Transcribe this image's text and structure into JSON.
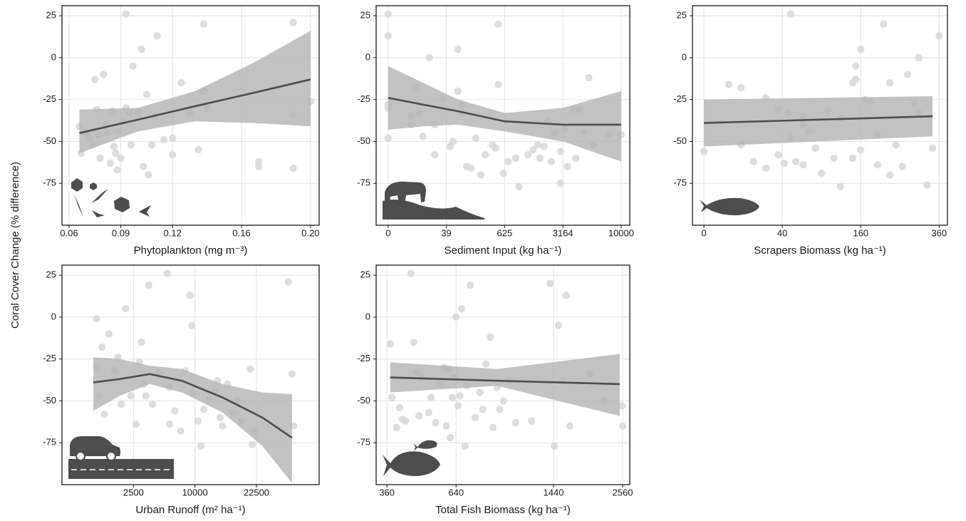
{
  "ylabel": "Coral Cover Change (% difference)",
  "chart_data": [
    {
      "type": "scatter",
      "xlabel": "Phytoplankton (mg m⁻³)",
      "xscale": "linear",
      "xlim": [
        0.0559,
        0.205
      ],
      "xticks": [
        {
          "value": 0.06,
          "label": "0.06"
        },
        {
          "value": 0.09,
          "label": "0.09"
        },
        {
          "value": 0.12,
          "label": "0.12"
        },
        {
          "value": 0.16,
          "label": "0.16"
        },
        {
          "value": 0.2,
          "label": "0.20"
        }
      ],
      "ylim": [
        -100,
        31
      ],
      "yticks": [
        25,
        0,
        -25,
        -50,
        -75
      ],
      "grid": true,
      "point_color": "#d9d9d9",
      "line_color": "#4d4d4d",
      "band_color": "#b3b3b3",
      "x": [
        0.093,
        0.066,
        0.067,
        0.07,
        0.072,
        0.074,
        0.075,
        0.076,
        0.077,
        0.078,
        0.08,
        0.081,
        0.082,
        0.084,
        0.085,
        0.086,
        0.087,
        0.088,
        0.089,
        0.09,
        0.091,
        0.093,
        0.095,
        0.096,
        0.097,
        0.1,
        0.102,
        0.103,
        0.105,
        0.106,
        0.108,
        0.11,
        0.111,
        0.115,
        0.12,
        0.12,
        0.125,
        0.13,
        0.135,
        0.138,
        0.138,
        0.14,
        0.17,
        0.17,
        0.19,
        0.19,
        0.19,
        0.2
      ],
      "values": [
        26,
        -41,
        -57,
        -45,
        -48,
        -52,
        -13,
        -31,
        -46,
        -60,
        -10,
        -40,
        -45,
        -63,
        -32,
        -53,
        -57,
        -67,
        -44,
        -60,
        -38,
        -30,
        -33,
        -52,
        -5,
        -32,
        5,
        -65,
        -22,
        -70,
        -52,
        -35,
        13,
        -49,
        -58,
        -48,
        -15,
        -33,
        -55,
        20,
        -20,
        -30,
        -62,
        -65,
        21,
        -34,
        -66,
        -26
      ],
      "fit_x": [
        0.066,
        0.1,
        0.133,
        0.167,
        0.2
      ],
      "fit_values": [
        -45,
        -37,
        -29,
        -21,
        -13
      ],
      "band_lower": [
        -57,
        -44,
        -38,
        -39,
        -41
      ],
      "band_upper": [
        -31,
        -30,
        -20,
        -3,
        16
      ]
    },
    {
      "type": "scatter",
      "xlabel": "Sediment Input (kg ha⁻¹)",
      "xscale": "root4",
      "xlim": [
        -0.07,
        11560
      ],
      "xticks": [
        0,
        39,
        625,
        3164,
        10000
      ],
      "ylim": [
        -100,
        31
      ],
      "yticks": [
        25,
        0,
        -25,
        -50,
        -75
      ],
      "grid": true,
      "point_color": "#d9d9d9",
      "line_color": "#4d4d4d",
      "band_color": "#b3b3b3",
      "x": [
        0,
        0,
        0,
        0,
        0,
        1,
        1,
        2,
        3,
        5,
        10,
        16,
        16,
        30,
        50,
        60,
        80,
        80,
        100,
        100,
        130,
        160,
        200,
        250,
        300,
        400,
        450,
        500,
        500,
        600,
        700,
        900,
        1000,
        1300,
        1500,
        1700,
        1800,
        2000,
        2200,
        2400,
        2600,
        3000,
        3000,
        3300,
        3500,
        4000,
        4200,
        4500,
        5000,
        5500,
        6000,
        8000,
        10000
      ],
      "values": [
        26,
        13,
        -28,
        -30,
        -48,
        -40,
        -35,
        -18,
        -33,
        -47,
        0,
        -40,
        -58,
        -25,
        -53,
        -50,
        -20,
        5,
        -28,
        -33,
        -65,
        -66,
        -48,
        -70,
        -58,
        -52,
        -54,
        20,
        -16,
        -69,
        -62,
        -60,
        -77,
        -58,
        -55,
        -52,
        -60,
        -53,
        -38,
        -62,
        -45,
        -56,
        -75,
        -42,
        -65,
        -31,
        -60,
        -31,
        -44,
        -12,
        -52,
        -46,
        -46
      ],
      "fit_x": [
        0,
        5,
        81,
        625,
        3164,
        10000
      ],
      "fit_values": [
        -24,
        -28,
        -32,
        -38,
        -40,
        -40
      ],
      "band_lower": [
        -43,
        -41,
        -40,
        -44,
        -50,
        -62
      ],
      "band_upper": [
        -5,
        -15,
        -25,
        -33,
        -30,
        -20
      ]
    },
    {
      "type": "scatter",
      "xlabel": "Scrapers Biomass (kg ha⁻¹)",
      "xscale": "sqrt",
      "xlim": [
        -0.85,
        386
      ],
      "xticks": [
        0,
        40,
        160,
        360
      ],
      "ylim": [
        -100,
        31
      ],
      "yticks": [
        25,
        0,
        -25,
        -50,
        -75
      ],
      "grid": true,
      "point_color": "#d9d9d9",
      "line_color": "#4d4d4d",
      "band_color": "#b3b3b3",
      "x": [
        0,
        4,
        9,
        9,
        16,
        25,
        25,
        36,
        36,
        42,
        46,
        49,
        49,
        55,
        64,
        64,
        72,
        81,
        90,
        100,
        110,
        121,
        144,
        144,
        150,
        150,
        160,
        160,
        169,
        180,
        196,
        196,
        210,
        225,
        240,
        256,
        270,
        289,
        300,
        324,
        340,
        360,
        300,
        225,
        121,
        64
      ],
      "values": [
        -56,
        -16,
        -18,
        -52,
        -62,
        -24,
        -66,
        -58,
        -31,
        -63,
        -33,
        26,
        -48,
        -62,
        -40,
        -64,
        -44,
        -54,
        -69,
        -32,
        -60,
        -77,
        -15,
        -60,
        -5,
        -13,
        -55,
        5,
        -25,
        -26,
        -64,
        -46,
        20,
        -15,
        -52,
        -65,
        -10,
        -27,
        0,
        -76,
        -54,
        13,
        -33,
        -70,
        -36,
        -35
      ],
      "fit_x": [
        0,
        340
      ],
      "fit_values": [
        -39,
        -35
      ],
      "band_lower": [
        -53,
        -47
      ],
      "band_upper": [
        -25,
        -23
      ]
    },
    {
      "type": "scatter",
      "xlabel": "Urban Runoff (m² ha⁻¹)",
      "xscale": "sqrt",
      "xlim": [
        -66,
        40400
      ],
      "xticks": [
        2500,
        10000,
        22500
      ],
      "ylim": [
        -100,
        31
      ],
      "yticks": [
        25,
        0,
        -25,
        -50,
        -75
      ],
      "grid": true,
      "point_color": "#d9d9d9",
      "line_color": "#4d4d4d",
      "band_color": "#b3b3b3",
      "x": [
        400,
        400,
        500,
        600,
        700,
        900,
        1200,
        1400,
        1600,
        1900,
        2300,
        2700,
        3000,
        3200,
        3400,
        3600,
        3900,
        4300,
        5000,
        6000,
        6300,
        6300,
        7000,
        7800,
        8500,
        9200,
        9500,
        9800,
        10500,
        11000,
        11500,
        12500,
        13500,
        14000,
        14500,
        15000,
        16000,
        17000,
        18000,
        19000,
        21000,
        21500,
        22000,
        31000,
        32000,
        32500
      ],
      "values": [
        -1,
        -30,
        -47,
        -18,
        -58,
        -10,
        -32,
        -24,
        -52,
        5,
        -47,
        -64,
        -27,
        -15,
        -40,
        -47,
        19,
        -52,
        -33,
        26,
        -42,
        -64,
        -56,
        -68,
        -32,
        13,
        -5,
        -45,
        -62,
        -77,
        -55,
        -49,
        -44,
        -38,
        -60,
        -65,
        -40,
        -57,
        -50,
        -62,
        -31,
        -76,
        -68,
        21,
        -34,
        -65
      ],
      "fit_x": [
        300,
        1500,
        4000,
        8000,
        15000,
        24000,
        32000
      ],
      "fit_values": [
        -39,
        -37,
        -34,
        -38,
        -48,
        -60,
        -72
      ],
      "band_lower": [
        -56,
        -47,
        -40,
        -45,
        -57,
        -77,
        -99
      ],
      "band_upper": [
        -24,
        -25,
        -29,
        -31,
        -40,
        -45,
        -46
      ]
    },
    {
      "type": "scatter",
      "xlabel": "Total Fish Biomass (kg ha⁻¹)",
      "xscale": "log",
      "xlim": [
        329,
        2716
      ],
      "xticks": [
        360,
        640,
        1440,
        2560
      ],
      "ylim": [
        -100,
        31
      ],
      "yticks": [
        25,
        0,
        -25,
        -50,
        -75
      ],
      "grid": true,
      "point_color": "#d9d9d9",
      "line_color": "#4d4d4d",
      "band_color": "#b3b3b3",
      "x": [
        370,
        375,
        390,
        400,
        410,
        420,
        440,
        450,
        460,
        470,
        480,
        510,
        520,
        540,
        560,
        580,
        590,
        600,
        610,
        620,
        630,
        640,
        650,
        660,
        670,
        690,
        700,
        720,
        750,
        780,
        800,
        820,
        850,
        870,
        900,
        920,
        950,
        1000,
        1050,
        1200,
        1400,
        1450,
        1500,
        1550,
        1600,
        1650,
        1950,
        2200,
        2550,
        2560
      ],
      "values": [
        -16,
        -48,
        -66,
        -54,
        -61,
        -62,
        26,
        -15,
        -33,
        -59,
        -36,
        -57,
        -48,
        -63,
        -40,
        -30,
        -65,
        -31,
        -72,
        -48,
        -36,
        0,
        -53,
        -47,
        5,
        -77,
        -41,
        19,
        -60,
        -45,
        -55,
        -28,
        -12,
        -66,
        -42,
        -55,
        -50,
        -38,
        -63,
        -62,
        20,
        -77,
        -5,
        -38,
        13,
        -65,
        -34,
        -50,
        -53,
        -65
      ],
      "fit_x": [
        370,
        900,
        2500
      ],
      "fit_values": [
        -36,
        -38,
        -40
      ],
      "band_lower": [
        -45,
        -41,
        -59
      ],
      "band_upper": [
        -27,
        -31,
        -22
      ]
    }
  ]
}
